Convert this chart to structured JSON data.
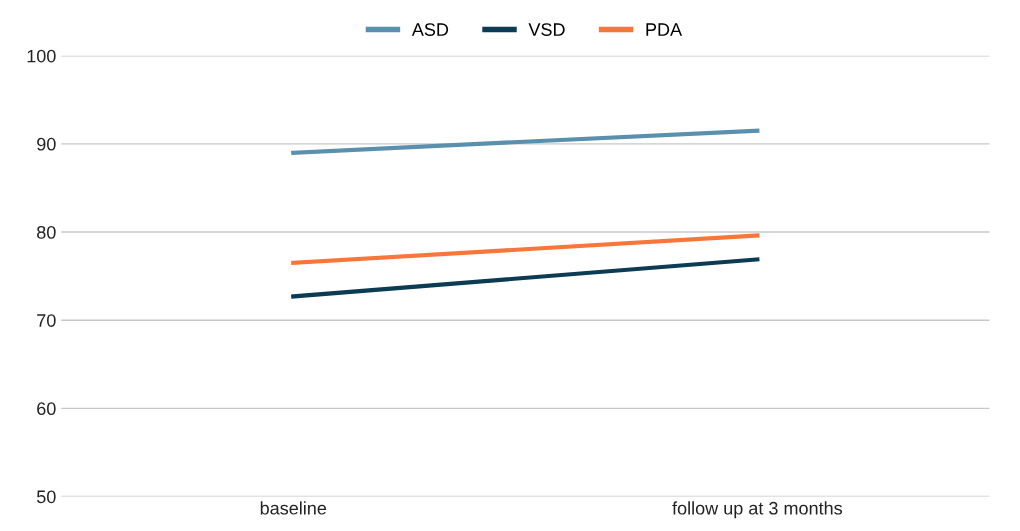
{
  "chart_data": {
    "type": "line",
    "categories": [
      "baseline",
      "follow up at 3 months"
    ],
    "series": [
      {
        "name": "ASD",
        "color": "#5a8fae",
        "values": [
          89.0,
          91.5
        ]
      },
      {
        "name": "VSD",
        "color": "#0c3c54",
        "values": [
          72.7,
          76.9
        ]
      },
      {
        "name": "PDA",
        "color": "#f7763a",
        "values": [
          76.5,
          79.6
        ]
      }
    ],
    "ylim": [
      50,
      100
    ],
    "yticks": [
      50,
      60,
      70,
      80,
      90,
      100
    ],
    "grid": "y",
    "legend": "top",
    "marker": "none",
    "line_style": "solid"
  }
}
